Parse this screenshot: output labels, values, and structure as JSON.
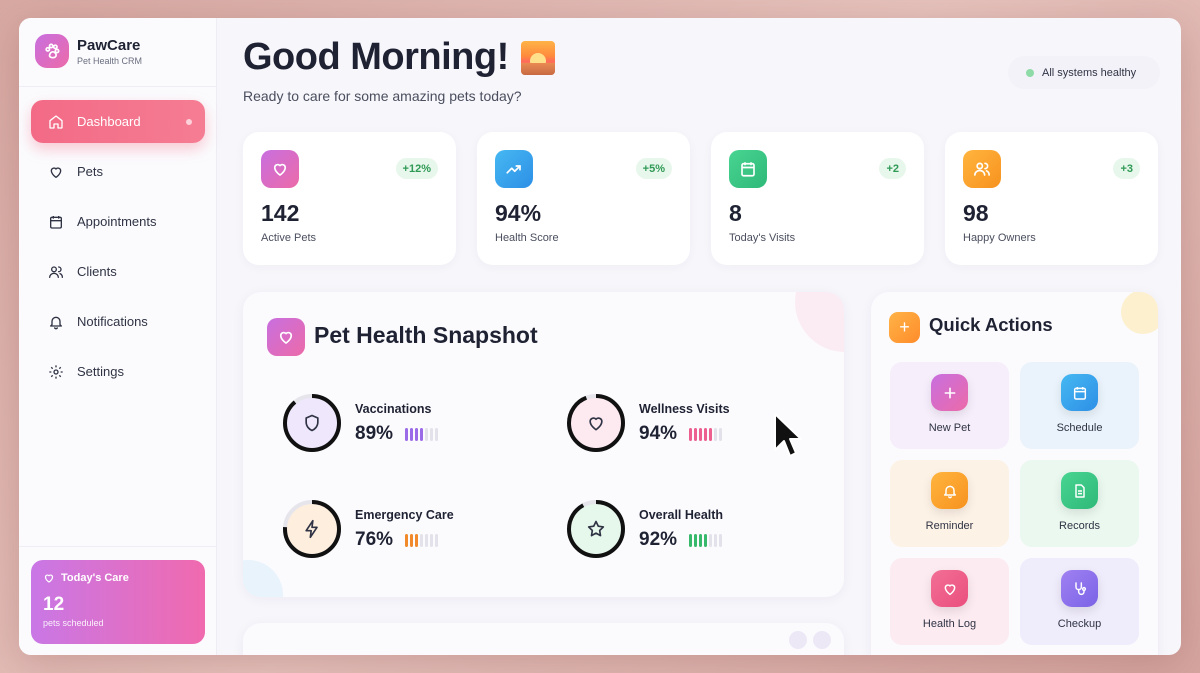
{
  "brand": {
    "name": "PawCare",
    "subtitle": "Pet Health CRM"
  },
  "sidebar": {
    "items": [
      {
        "label": "Dashboard",
        "icon": "home-icon",
        "active": true
      },
      {
        "label": "Pets",
        "icon": "heart-icon"
      },
      {
        "label": "Appointments",
        "icon": "calendar-icon"
      },
      {
        "label": "Clients",
        "icon": "users-icon"
      },
      {
        "label": "Notifications",
        "icon": "bell-icon"
      },
      {
        "label": "Settings",
        "icon": "gear-icon"
      }
    ],
    "care": {
      "title": "Today's Care",
      "value": "12",
      "sub": "pets scheduled"
    }
  },
  "header": {
    "greeting": "Good Morning!",
    "subtitle": "Ready to care for some amazing pets today?",
    "status": "All systems healthy"
  },
  "stats": [
    {
      "value": "142",
      "label": "Active Pets",
      "badge": "+12%",
      "icon": "heart-icon",
      "color": "#d56be0"
    },
    {
      "value": "94%",
      "label": "Health Score",
      "badge": "+5%",
      "icon": "trending-up-icon",
      "color": "#3aa7ee"
    },
    {
      "value": "8",
      "label": "Today's Visits",
      "badge": "+2",
      "icon": "calendar-icon",
      "color": "#39c98a"
    },
    {
      "value": "98",
      "label": "Happy Owners",
      "badge": "+3",
      "icon": "users-icon",
      "color": "#f8a531"
    }
  ],
  "snapshot": {
    "title": "Pet Health Snapshot",
    "metrics": [
      {
        "name": "Vaccinations",
        "value": "89%",
        "percent": 89,
        "icon": "shield-icon",
        "fill": "#efe7fb",
        "bar": "#9b6ae8"
      },
      {
        "name": "Wellness Visits",
        "value": "94%",
        "percent": 94,
        "icon": "heart-icon",
        "fill": "#fde9f0",
        "bar": "#ec5f8e"
      },
      {
        "name": "Emergency Care",
        "value": "76%",
        "percent": 76,
        "icon": "bolt-icon",
        "fill": "#fdeede",
        "bar": "#f08a2a"
      },
      {
        "name": "Overall Health",
        "value": "92%",
        "percent": 92,
        "icon": "star-icon",
        "fill": "#e6f7ec",
        "bar": "#37b86a"
      }
    ]
  },
  "quick_actions": {
    "title": "Quick Actions",
    "items": [
      {
        "label": "New Pet",
        "icon": "plus-icon",
        "color": "#d56be0",
        "bg": "#f6eefb"
      },
      {
        "label": "Schedule",
        "icon": "calendar-icon",
        "color": "#3aa7ee",
        "bg": "#eaf3fb"
      },
      {
        "label": "Reminder",
        "icon": "bell-icon",
        "color": "#f8a531",
        "bg": "#fdf2e6"
      },
      {
        "label": "Records",
        "icon": "document-icon",
        "color": "#39c98a",
        "bg": "#eaf8ef"
      },
      {
        "label": "Health Log",
        "icon": "heart-icon",
        "color": "#f0628f",
        "bg": "#fcebf1"
      },
      {
        "label": "Checkup",
        "icon": "stethoscope-icon",
        "color": "#8d73ee",
        "bg": "#efecfb"
      }
    ]
  }
}
